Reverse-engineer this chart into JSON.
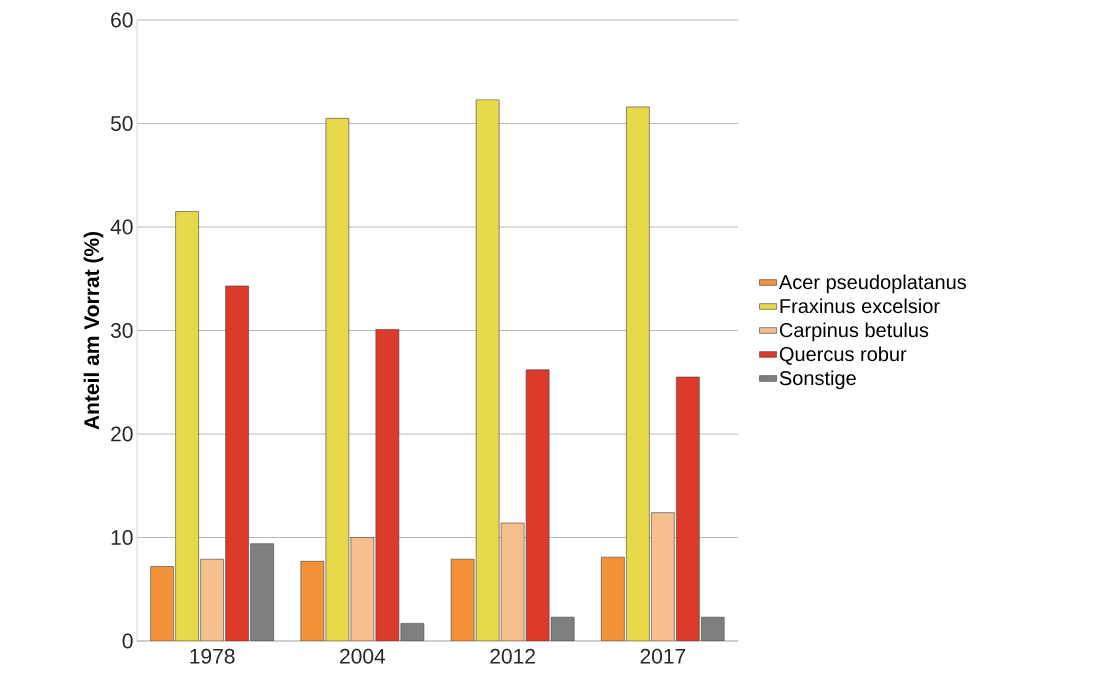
{
  "chart_data": {
    "type": "bar",
    "ylabel": "Anteil am Vorrat (%)",
    "categories": [
      "1978",
      "2004",
      "2012",
      "2017"
    ],
    "series": [
      {
        "name": "Acer pseudoplatanus",
        "color": "#f4923a",
        "values": [
          7.2,
          7.7,
          7.9,
          8.1
        ]
      },
      {
        "name": "Fraxinus excelsior",
        "color": "#e8d94a",
        "values": [
          41.5,
          50.5,
          52.3,
          51.6
        ]
      },
      {
        "name": "Carpinus betulus",
        "color": "#f5bf8e",
        "values": [
          7.9,
          10.0,
          11.4,
          12.4
        ]
      },
      {
        "name": "Quercus robur",
        "color": "#dc3a2a",
        "values": [
          34.3,
          30.1,
          26.2,
          25.5
        ]
      },
      {
        "name": "Sonstige",
        "color": "#7f7f7f",
        "values": [
          9.4,
          1.7,
          2.3,
          2.3
        ]
      }
    ],
    "ylim": [
      0,
      60
    ],
    "yticks": [
      0,
      10,
      20,
      30,
      40,
      50,
      60
    ],
    "grid": "y",
    "legend": "right"
  }
}
